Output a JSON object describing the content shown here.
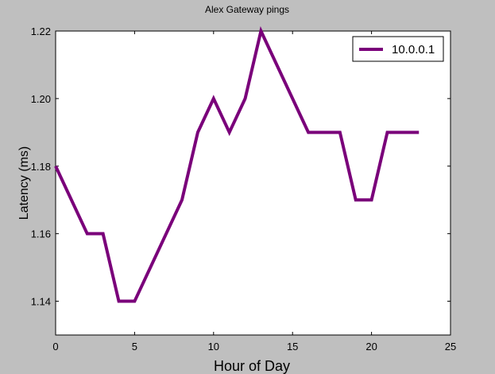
{
  "chart_data": {
    "type": "line",
    "title": "Alex Gateway pings",
    "xlabel": "Hour of Day",
    "ylabel": "Latency (ms)",
    "xlim": [
      0,
      25
    ],
    "ylim": [
      1.13,
      1.22
    ],
    "xticks": [
      0,
      5,
      10,
      15,
      20,
      25
    ],
    "yticks": [
      1.14,
      1.16,
      1.18,
      1.2,
      1.22
    ],
    "xtick_labels": [
      "0",
      "5",
      "10",
      "15",
      "20",
      "25"
    ],
    "ytick_labels": [
      "1.14",
      "1.16",
      "1.18",
      "1.20",
      "1.22"
    ],
    "legend_position": "top-right",
    "grid": false,
    "series": [
      {
        "name": "10.0.0.1",
        "color": "#7a007a",
        "x": [
          0,
          2,
          3,
          4,
          5,
          8,
          9,
          10,
          11,
          12,
          13,
          16,
          17,
          18,
          19,
          20,
          21,
          23
        ],
        "y": [
          1.18,
          1.16,
          1.16,
          1.14,
          1.14,
          1.17,
          1.19,
          1.2,
          1.19,
          1.2,
          1.22,
          1.19,
          1.19,
          1.19,
          1.17,
          1.17,
          1.19,
          1.19
        ]
      }
    ]
  }
}
